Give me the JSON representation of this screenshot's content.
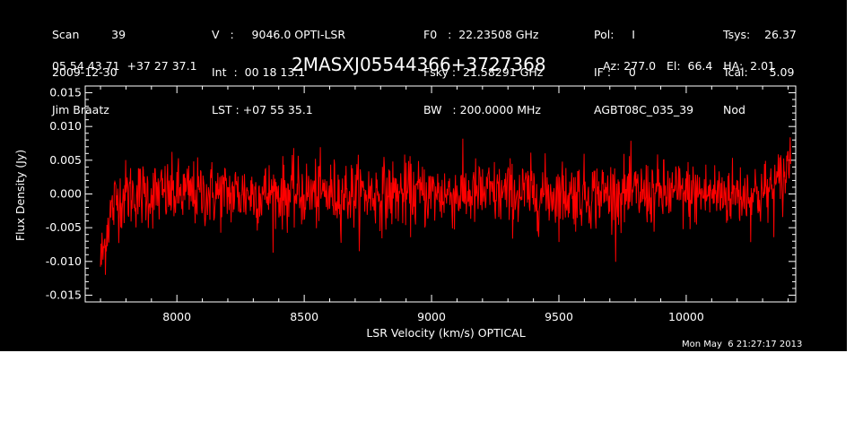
{
  "header": {
    "col1": [
      "Scan         39",
      "2009-12-30",
      "Jim Braatz"
    ],
    "col2": [
      "V   :     9046.0 OPTI-LSR",
      "Int  :  00 18 13.1",
      "LST : +07 55 35.1"
    ],
    "col3": [
      "F0   :  22.23508 GHz",
      "Fsky :  21.58291 GHz",
      "BW   : 200.0000 MHz"
    ],
    "col4": [
      "Pol:     I",
      "IF :     0",
      "AGBT08C_035_39"
    ],
    "col5": [
      "Tsys:    26.37",
      "Tcal:      5.09",
      "Nod"
    ],
    "coords": "05 54 43.71  +37 27 37.1",
    "source": "2MASXJ05544366+3727368",
    "azel": "Az: 277.0   El:  66.4   HA:  2.01",
    "timestamp": "Mon May  6 21:27:17 2013"
  },
  "colors": {
    "background": "#000000",
    "axes": "#ffffff",
    "trace": "#ff0000"
  },
  "chart_data": {
    "type": "line",
    "title": "2MASXJ05544366+3727368",
    "xlabel": "LSR Velocity (km/s) OPTICAL",
    "ylabel": "Flux Density (Jy)",
    "xlim": [
      7640,
      10430
    ],
    "ylim": [
      -0.016,
      0.016
    ],
    "xticks": [
      8000,
      8500,
      9000,
      9500,
      10000
    ],
    "xtick_labels": [
      "8000",
      "8500",
      "9000",
      "9500",
      "10000"
    ],
    "yticks": [
      -0.015,
      -0.01,
      -0.005,
      0.0,
      0.005,
      0.01,
      0.015
    ],
    "ytick_labels": [
      "-0.015",
      "-0.010",
      "-0.005",
      "0.000",
      "0.005",
      "0.010",
      "0.015"
    ],
    "grid": false,
    "series": [
      {
        "color": "#ff0000",
        "x": [
          7700,
          7715,
          7730,
          7760,
          7800,
          7900,
          8000,
          8100,
          8200,
          8300,
          8400,
          8500,
          8600,
          8700,
          8800,
          8900,
          9000,
          9100,
          9200,
          9300,
          9400,
          9500,
          9600,
          9700,
          9800,
          9900,
          10000,
          10100,
          10200,
          10300,
          10350,
          10380,
          10400,
          10410
        ],
        "y": [
          -0.01,
          -0.008,
          -0.004,
          -0.001,
          0.0,
          0.0,
          0.0,
          0.0,
          0.0,
          0.0,
          0.0,
          0.0,
          0.0,
          0.0,
          0.0,
          0.0,
          0.0,
          0.0,
          0.0,
          0.0,
          0.0,
          0.0,
          0.0,
          0.0,
          0.0,
          0.0,
          0.0,
          0.0,
          0.0,
          0.0,
          0.001,
          0.002,
          0.004,
          0.007
        ],
        "noise_rms": 0.0025
      }
    ]
  }
}
